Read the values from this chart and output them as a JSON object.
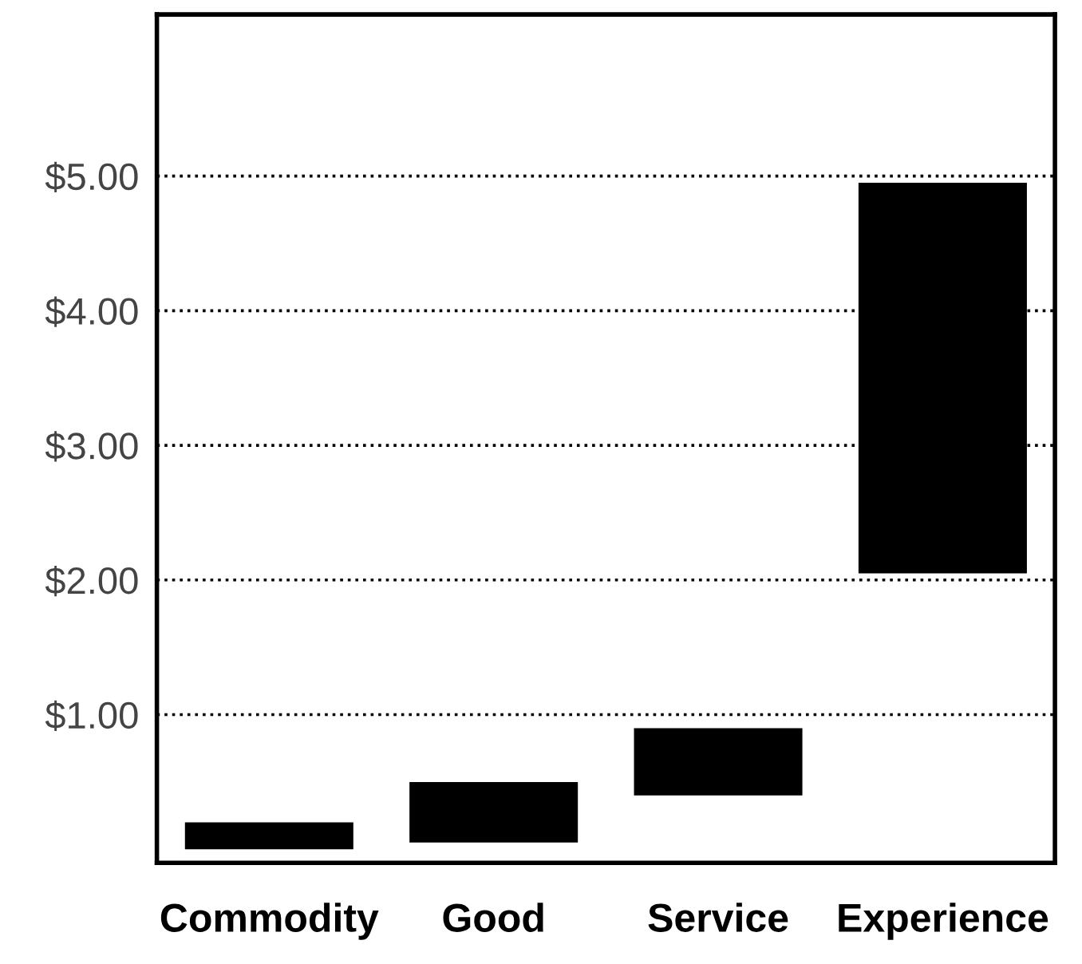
{
  "chart_data": {
    "type": "bar",
    "categories": [
      "Commodity",
      "Good",
      "Service",
      "Experience"
    ],
    "values": [
      0.2,
      0.45,
      0.5,
      2.9
    ],
    "base": [
      0,
      0.05,
      0.4,
      2.05
    ],
    "color": "#000000",
    "ylim": [
      -0.1,
      6.2
    ],
    "yticks": [
      {
        "value": 1,
        "label": "$1.00"
      },
      {
        "value": 2,
        "label": "$2.00"
      },
      {
        "value": 3,
        "label": "$3.00"
      },
      {
        "value": 4,
        "label": "$4.00"
      },
      {
        "value": 5,
        "label": "$5.00"
      }
    ],
    "grid": "y",
    "line_style": "dotted"
  }
}
